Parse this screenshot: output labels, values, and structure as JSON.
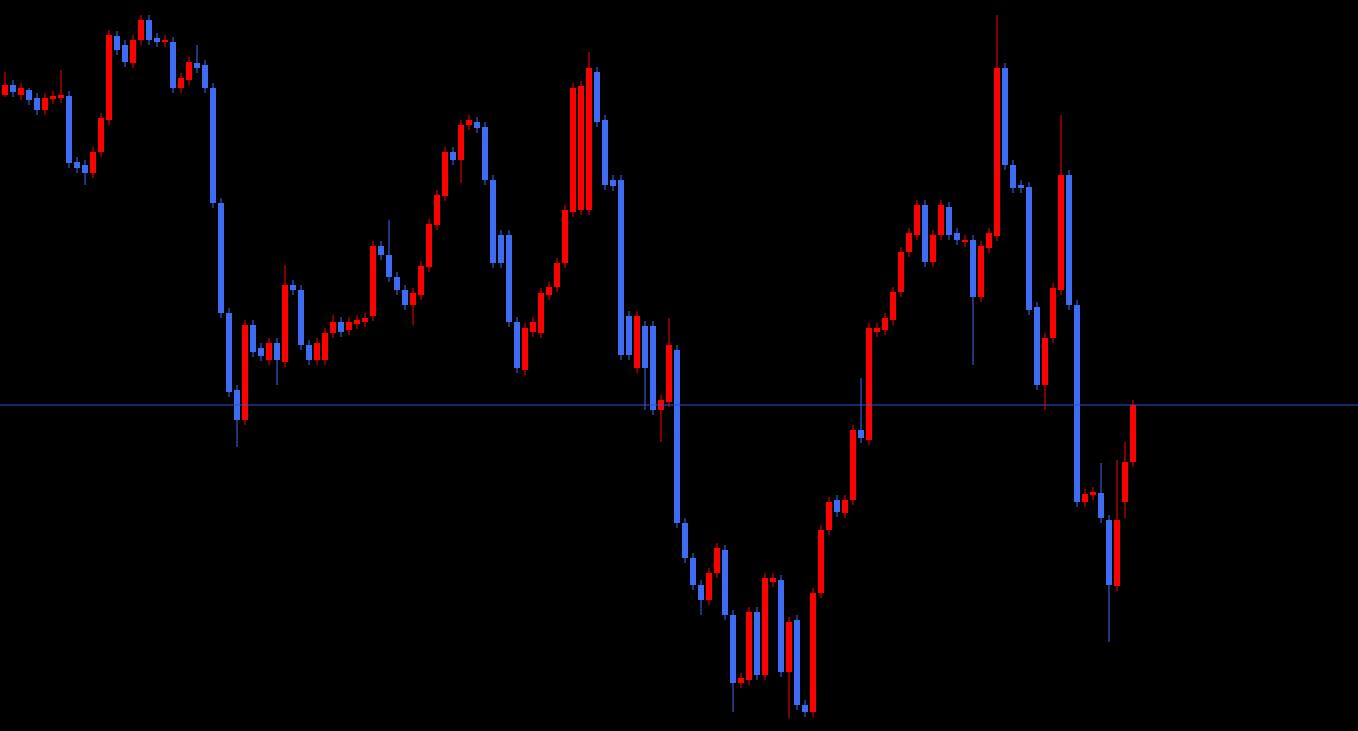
{
  "chart_data": {
    "type": "candlestick",
    "up_color": "#ff0000",
    "down_color": "#3d6cf2",
    "level_color": "#3550c8",
    "ylim": [
      0,
      731
    ],
    "level": 326,
    "open": [
      636,
      646,
      636,
      641,
      633,
      621,
      632,
      633,
      635,
      569,
      566,
      558,
      579,
      611,
      695,
      686,
      668,
      691,
      711,
      693,
      689,
      689,
      643,
      651,
      668,
      666,
      643,
      528,
      418,
      341,
      311,
      406,
      383,
      371,
      388,
      369,
      446,
      441,
      386,
      371,
      371,
      398,
      409,
      401,
      407,
      409,
      415,
      485,
      476,
      454,
      441,
      426,
      436,
      464,
      506,
      535,
      579,
      571,
      606,
      609,
      604,
      551,
      496,
      496,
      409,
      361,
      399,
      398,
      436,
      444,
      468,
      519,
      521,
      521,
      659,
      611,
      551,
      551,
      415,
      363,
      405,
      405,
      321,
      329,
      381,
      208,
      173,
      146,
      131,
      158,
      181,
      116,
      48,
      51,
      119,
      56,
      149,
      151,
      59,
      111,
      26,
      19,
      138,
      201,
      231,
      218,
      231,
      301,
      291,
      399,
      401,
      411,
      439,
      479,
      496,
      526,
      469,
      496,
      524,
      498,
      489,
      491,
      434,
      483,
      495,
      663,
      566,
      546,
      544,
      424,
      346,
      393,
      441,
      556,
      426,
      229,
      236,
      238,
      211,
      145,
      229,
      269
    ],
    "high": [
      659,
      651,
      648,
      643,
      638,
      638,
      640,
      661,
      640,
      574,
      571,
      584,
      618,
      701,
      700,
      691,
      696,
      716,
      716,
      698,
      696,
      694,
      658,
      674,
      686,
      671,
      648,
      533,
      423,
      346,
      411,
      411,
      388,
      393,
      393,
      466,
      451,
      446,
      391,
      393,
      403,
      416,
      414,
      414,
      416,
      418,
      490,
      490,
      511,
      459,
      446,
      443,
      470,
      512,
      541,
      584,
      584,
      611,
      616,
      614,
      609,
      556,
      501,
      501,
      414,
      408,
      414,
      443,
      449,
      473,
      526,
      648,
      650,
      679,
      664,
      616,
      556,
      556,
      420,
      420,
      410,
      410,
      336,
      413,
      386,
      213,
      178,
      151,
      163,
      188,
      186,
      121,
      58,
      124,
      124,
      158,
      158,
      156,
      114,
      116,
      31,
      143,
      206,
      234,
      236,
      236,
      306,
      353,
      408,
      408,
      418,
      444,
      484,
      503,
      531,
      531,
      501,
      531,
      529,
      503,
      496,
      496,
      490,
      503,
      716,
      668,
      571,
      551,
      549,
      429,
      398,
      448,
      616,
      561,
      431,
      242,
      244,
      268,
      216,
      271,
      289,
      331
    ],
    "low": [
      634,
      634,
      631,
      626,
      616,
      616,
      627,
      628,
      563,
      558,
      546,
      553,
      574,
      606,
      676,
      664,
      663,
      686,
      686,
      684,
      684,
      638,
      638,
      646,
      658,
      638,
      523,
      413,
      334,
      284,
      306,
      374,
      370,
      366,
      346,
      364,
      436,
      381,
      366,
      366,
      366,
      393,
      394,
      396,
      402,
      404,
      410,
      471,
      449,
      436,
      421,
      406,
      431,
      459,
      501,
      530,
      566,
      548,
      601,
      598,
      546,
      463,
      463,
      404,
      358,
      356,
      394,
      393,
      431,
      439,
      463,
      514,
      516,
      516,
      604,
      541,
      540,
      371,
      371,
      358,
      321,
      316,
      289,
      324,
      203,
      168,
      141,
      116,
      126,
      153,
      111,
      19,
      43,
      46,
      51,
      51,
      144,
      54,
      13,
      21,
      14,
      14,
      133,
      196,
      214,
      213,
      226,
      288,
      286,
      394,
      396,
      406,
      434,
      474,
      491,
      464,
      464,
      491,
      491,
      486,
      484,
      366,
      429,
      478,
      490,
      561,
      538,
      538,
      416,
      341,
      321,
      388,
      436,
      421,
      224,
      224,
      231,
      208,
      89,
      140,
      213,
      264
    ],
    "close": [
      646,
      639,
      643,
      631,
      621,
      633,
      635,
      636,
      568,
      563,
      558,
      579,
      613,
      696,
      681,
      669,
      691,
      711,
      691,
      689,
      691,
      643,
      653,
      669,
      663,
      643,
      528,
      418,
      339,
      311,
      406,
      379,
      375,
      388,
      371,
      446,
      441,
      386,
      371,
      388,
      398,
      409,
      399,
      409,
      411,
      413,
      485,
      476,
      454,
      441,
      426,
      438,
      465,
      507,
      536,
      579,
      571,
      606,
      611,
      603,
      551,
      468,
      468,
      409,
      363,
      403,
      409,
      438,
      444,
      468,
      521,
      643,
      645,
      663,
      609,
      546,
      545,
      376,
      376,
      415,
      363,
      321,
      331,
      386,
      208,
      173,
      146,
      131,
      158,
      183,
      116,
      48,
      53,
      119,
      56,
      153,
      153,
      59,
      109,
      26,
      19,
      138,
      201,
      229,
      219,
      231,
      301,
      293,
      403,
      403,
      413,
      439,
      479,
      498,
      526,
      469,
      496,
      526,
      496,
      491,
      491,
      434,
      485,
      498,
      663,
      566,
      543,
      543,
      421,
      346,
      393,
      443,
      556,
      426,
      229,
      237,
      239,
      213,
      146,
      211,
      269,
      326
    ]
  }
}
